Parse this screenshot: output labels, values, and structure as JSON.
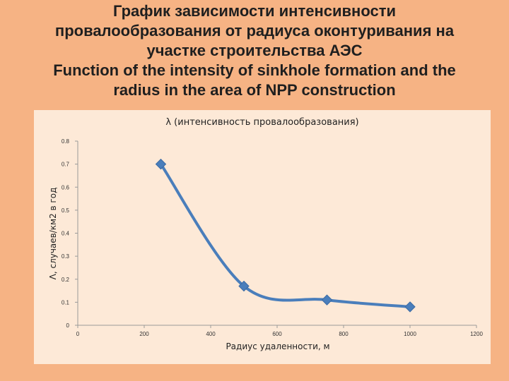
{
  "slide": {
    "title_lines": [
      "График зависимости интенсивности",
      "провалообразования от радиуса оконтуривания на",
      "участке строительства АЭС",
      "Function of the intensity of sinkhole formation and the",
      "radius in the area of NPP construction"
    ]
  },
  "chart_data": {
    "type": "line",
    "title": "λ (интенсивность провалообразования)",
    "xlabel": "Радиус удаленности, м",
    "ylabel": "Λ, случаев/км2 в год",
    "xlim": [
      0,
      1200
    ],
    "ylim": [
      0,
      0.8
    ],
    "x_ticks": [
      "0",
      "200",
      "400",
      "600",
      "800",
      "1000",
      "1200"
    ],
    "y_ticks": [
      "0",
      "0.1",
      "0.2",
      "0.3",
      "0.4",
      "0.5",
      "0.6",
      "0.7",
      "0.8"
    ],
    "grid": false,
    "series": [
      {
        "x": [
          250,
          500,
          750,
          1000
        ],
        "y": [
          0.7,
          0.17,
          0.11,
          0.08
        ]
      }
    ],
    "line_color": "#4a7ebb",
    "marker": "diamond"
  }
}
